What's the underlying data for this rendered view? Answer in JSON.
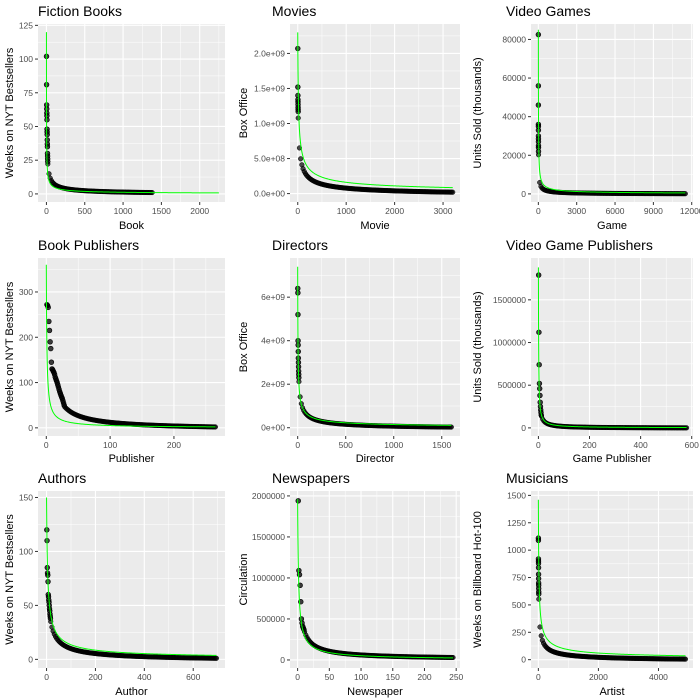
{
  "colors": {
    "panel_bg": "#EBEBEB",
    "grid": "#FFFFFF",
    "points": "#000000",
    "fit_line": "#00FF00",
    "tick_text": "#4D4D4D",
    "title_text": "#000000"
  },
  "chart_data": [
    {
      "type": "scatter",
      "title": "Fiction Books",
      "xlabel": "Book",
      "ylabel": "Weeks on NYT Bestsellers",
      "xlim": [
        -110,
        2330
      ],
      "ylim": [
        -6,
        126
      ],
      "xticks": [
        0,
        500,
        1000,
        1500,
        2000
      ],
      "yticks": [
        0,
        25,
        50,
        75,
        100,
        125
      ],
      "ytick_labels": [
        "0",
        "25",
        "50",
        "75",
        "100",
        "125"
      ],
      "x_max": 2250,
      "point_x_end": 1380,
      "tail_value": 1,
      "leading_values": [
        102,
        81,
        66,
        63,
        60,
        58,
        55,
        48,
        46,
        44,
        40,
        37,
        35,
        30,
        28,
        26,
        24
      ],
      "fit_line": {
        "a": 120,
        "x0": 0.6,
        "p": 0.62,
        "x_end": 2250
      }
    },
    {
      "type": "scatter",
      "title": "Movies",
      "xlabel": "Movie",
      "ylabel": "Box Office",
      "xlim": [
        -160,
        3350
      ],
      "ylim": [
        -120000000.0,
        2420000000.0
      ],
      "xticks": [
        0,
        1000,
        2000,
        3000
      ],
      "yticks": [
        0,
        500000000,
        1000000000,
        1500000000,
        2000000000
      ],
      "ytick_labels": [
        "0.0e+00",
        "5.0e+08",
        "1.0e+09",
        "1.5e+09",
        "2.0e+09"
      ],
      "x_max": 3200,
      "point_x_end": 3200,
      "tail_value": 20000000,
      "leading_values": [
        2070000000,
        1520000000,
        1400000000,
        1340000000,
        1310000000,
        1270000000,
        1230000000,
        1200000000,
        1170000000
      ],
      "fit_line": {
        "a": 2300000000,
        "x0": 8,
        "p": 0.55,
        "x_end": 3200
      }
    },
    {
      "type": "scatter",
      "title": "Video Games",
      "xlabel": "Game",
      "ylabel": "Units Sold (thousands)",
      "xlim": [
        -575,
        12100
      ],
      "ylim": [
        -4200,
        88000
      ],
      "xticks": [
        0,
        3000,
        6000,
        9000,
        12000
      ],
      "yticks": [
        0,
        20000,
        40000,
        60000,
        80000
      ],
      "ytick_labels": [
        "0",
        "20000",
        "40000",
        "60000",
        "80000"
      ],
      "x_max": 11500,
      "point_x_end": 11500,
      "tail_value": 100,
      "leading_values": [
        82500,
        56000,
        46000,
        36000,
        35000,
        33000,
        30000,
        28500,
        27000,
        25000,
        24000,
        22000
      ],
      "fit_line": {
        "a": 85000,
        "x0": 6,
        "p": 0.68,
        "x_end": 11500
      }
    },
    {
      "type": "scatter",
      "title": "Book Publishers",
      "xlabel": "Publisher",
      "ylabel": "Weeks on NYT Bestsellers",
      "xlim": [
        -13,
        280
      ],
      "ylim": [
        -18,
        375
      ],
      "xticks": [
        0,
        100,
        200
      ],
      "yticks": [
        0,
        100,
        200,
        300
      ],
      "ytick_labels": [
        "0",
        "100",
        "200",
        "300"
      ],
      "x_max": 265,
      "point_x_end": 265,
      "tail_value": 2,
      "leading_values": [
        272,
        270,
        266,
        235,
        215,
        190,
        175,
        145,
        130,
        128,
        125,
        122,
        118,
        112,
        108,
        104,
        100,
        95,
        90,
        85,
        80,
        76,
        72,
        68,
        65,
        60,
        55,
        50
      ],
      "fit_line": {
        "a": 360,
        "x0": 0.8,
        "p": 0.88,
        "x_end": 265
      }
    },
    {
      "type": "scatter",
      "title": "Directors",
      "xlabel": "Director",
      "ylabel": "Box Office",
      "xlim": [
        -80,
        1690
      ],
      "ylim": [
        -380000000.0,
        7800000000.0
      ],
      "xticks": [
        0,
        500,
        1000,
        1500
      ],
      "yticks": [
        0,
        2000000000,
        4000000000,
        6000000000
      ],
      "ytick_labels": [
        "0e+00",
        "2e+09",
        "4e+09",
        "6e+09"
      ],
      "x_max": 1600,
      "point_x_end": 1600,
      "tail_value": 30000000,
      "leading_values": [
        6400000000,
        6200000000,
        5200000000,
        4000000000,
        3800000000,
        3500000000,
        3200000000,
        3000000000,
        2800000000,
        2600000000,
        2450000000,
        2300000000
      ],
      "fit_line": {
        "a": 7400000000,
        "x0": 1.8,
        "p": 0.62,
        "x_end": 1600
      }
    },
    {
      "type": "scatter",
      "title": "Video Game Publishers",
      "xlabel": "Game Publisher",
      "ylabel": "Units Sold (thousands)",
      "xlim": [
        -29,
        605
      ],
      "ylim": [
        -95000,
        1990000
      ],
      "xticks": [
        0,
        200,
        400,
        600
      ],
      "yticks": [
        0,
        500000,
        1000000,
        1500000
      ],
      "ytick_labels": [
        "0",
        "500000",
        "1000000",
        "1500000"
      ],
      "x_max": 580,
      "point_x_end": 580,
      "tail_value": 500,
      "leading_values": [
        1790000,
        1120000,
        740000,
        520000,
        460000,
        380000,
        300000,
        250000,
        210000,
        180000,
        150000
      ],
      "fit_line": {
        "a": 1880000,
        "x0": 0.9,
        "p": 0.95,
        "x_end": 580
      }
    },
    {
      "type": "scatter",
      "title": "Authors",
      "xlabel": "Author",
      "ylabel": "Weeks on NYT Bestsellers",
      "xlim": [
        -35,
        730
      ],
      "ylim": [
        -8,
        156
      ],
      "xticks": [
        0,
        200,
        400,
        600
      ],
      "yticks": [
        0,
        50,
        100,
        150
      ],
      "ytick_labels": [
        "0",
        "50",
        "100",
        "150"
      ],
      "x_max": 695,
      "point_x_end": 695,
      "tail_value": 1,
      "leading_values": [
        120,
        110,
        85,
        80,
        78,
        72,
        60,
        58,
        55,
        53,
        50,
        47,
        45,
        42,
        40,
        38
      ],
      "fit_line": {
        "a": 150,
        "x0": 3,
        "p": 0.68,
        "x_end": 695
      }
    },
    {
      "type": "scatter",
      "title": "Newspapers",
      "xlabel": "Newspaper",
      "ylabel": "Circulation",
      "xlim": [
        -12,
        256
      ],
      "ylim": [
        -98000,
        2060000
      ],
      "xticks": [
        0,
        50,
        100,
        150,
        200,
        250
      ],
      "yticks": [
        0,
        500000,
        1000000,
        1500000,
        2000000
      ],
      "ytick_labels": [
        "0",
        "500000",
        "1000000",
        "1500000",
        "2000000"
      ],
      "x_max": 245,
      "point_x_end": 245,
      "tail_value": 30000,
      "leading_values": [
        1940000,
        1090000,
        1040000,
        910000,
        710000,
        500000,
        450000,
        410000,
        390000,
        370000
      ],
      "fit_line": {
        "a": 1960000,
        "x0": 1.2,
        "p": 0.82,
        "x_end": 245
      }
    },
    {
      "type": "scatter",
      "title": "Musicians",
      "xlabel": "Artist",
      "ylabel": "Weeks on Billboard Hot-100",
      "xlim": [
        -245,
        5150
      ],
      "ylim": [
        -76,
        1540
      ],
      "xticks": [
        0,
        2000,
        4000
      ],
      "yticks": [
        0,
        250,
        500,
        750,
        1000,
        1250,
        1500
      ],
      "ytick_labels": [
        "0",
        "250",
        "500",
        "750",
        "1000",
        "1250",
        "1500"
      ],
      "x_max": 4900,
      "point_x_end": 4900,
      "tail_value": 5,
      "leading_values": [
        1110,
        1090,
        920,
        900,
        880,
        840,
        780,
        740,
        700,
        680,
        650,
        620,
        600
      ],
      "fit_line": {
        "a": 1460,
        "x0": 10,
        "p": 0.6,
        "x_end": 4900
      }
    }
  ]
}
